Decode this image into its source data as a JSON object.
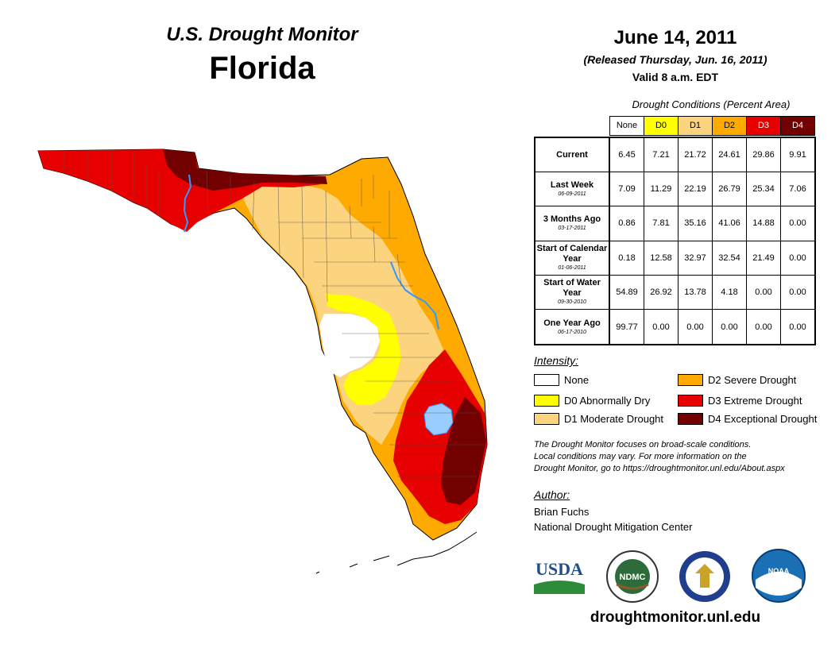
{
  "header": {
    "monitor_title": "U.S. Drought Monitor",
    "state": "Florida",
    "date": "June 14, 2011",
    "released": "(Released Thursday, Jun. 16, 2011)",
    "valid": "Valid 8 a.m. EDT"
  },
  "table": {
    "caption": "Drought Conditions (Percent Area)",
    "categories": [
      {
        "label": "None",
        "color": "#ffffff"
      },
      {
        "label": "D0",
        "color": "#ffff00"
      },
      {
        "label": "D1",
        "color": "#fcd37f"
      },
      {
        "label": "D2",
        "color": "#ffaa00"
      },
      {
        "label": "D3",
        "color": "#e60000"
      },
      {
        "label": "D4",
        "color": "#730000"
      }
    ],
    "rows": [
      {
        "label": "Current",
        "date": "",
        "values": [
          "6.45",
          "7.21",
          "21.72",
          "24.61",
          "29.86",
          "9.91"
        ]
      },
      {
        "label": "Last Week",
        "date": "06-09-2011",
        "values": [
          "7.09",
          "11.29",
          "22.19",
          "26.79",
          "25.34",
          "7.06"
        ]
      },
      {
        "label": "3 Months Ago",
        "date": "03-17-2011",
        "values": [
          "0.86",
          "7.81",
          "35.16",
          "41.06",
          "14.88",
          "0.00"
        ]
      },
      {
        "label": "Start of Calendar Year",
        "date": "01-06-2011",
        "values": [
          "0.18",
          "12.58",
          "32.97",
          "32.54",
          "21.49",
          "0.00"
        ]
      },
      {
        "label": "Start of Water Year",
        "date": "09-30-2010",
        "values": [
          "54.89",
          "26.92",
          "13.78",
          "4.18",
          "0.00",
          "0.00"
        ]
      },
      {
        "label": "One Year Ago",
        "date": "06-17-2010",
        "values": [
          "99.77",
          "0.00",
          "0.00",
          "0.00",
          "0.00",
          "0.00"
        ]
      }
    ]
  },
  "legend": {
    "title": "Intensity:",
    "items": [
      {
        "label": "None",
        "color": "#ffffff"
      },
      {
        "label": "D0 Abnormally Dry",
        "color": "#ffff00"
      },
      {
        "label": "D1 Moderate Drought",
        "color": "#fcd37f"
      },
      {
        "label": "D2 Severe Drought",
        "color": "#ffaa00"
      },
      {
        "label": "D3 Extreme Drought",
        "color": "#e60000"
      },
      {
        "label": "D4 Exceptional Drought",
        "color": "#730000"
      }
    ]
  },
  "note": {
    "line1": "The Drought Monitor focuses on broad-scale conditions.",
    "line2": "Local conditions may vary. For more information on the",
    "line3": "Drought Monitor, go to https://droughtmonitor.unl.edu/About.aspx"
  },
  "author": {
    "title": "Author:",
    "name": "Brian Fuchs",
    "org": "National Drought Mitigation Center"
  },
  "logos": {
    "usda": "USDA",
    "ndmc": "NDMC",
    "noaa": "NOAA"
  },
  "website": "droughtmonitor.unl.edu",
  "map": {
    "river_color": "#3399ff",
    "lake_color": "#99ccff"
  }
}
